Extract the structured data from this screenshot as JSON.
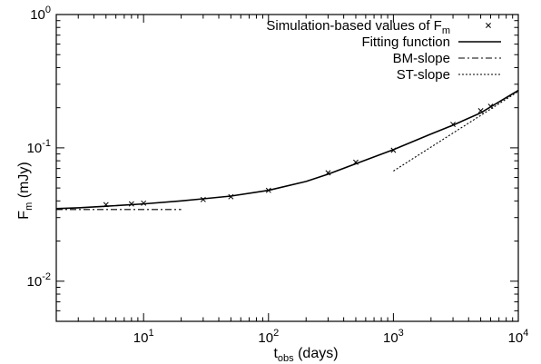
{
  "chart_data": {
    "type": "line",
    "xscale": "log",
    "yscale": "log",
    "xlim": [
      2,
      10000
    ],
    "ylim": [
      0.005,
      1
    ],
    "grid": false,
    "legend_position": "top-right",
    "xlabel": {
      "base": "t",
      "sub": "obs",
      "rest": " (days)"
    },
    "ylabel": {
      "base": "F",
      "sub": "m",
      "rest": " (mJy)"
    },
    "x_ticks": [
      {
        "value": 10,
        "base": "10",
        "exp": "1"
      },
      {
        "value": 100,
        "base": "10",
        "exp": "2"
      },
      {
        "value": 1000,
        "base": "10",
        "exp": "3"
      },
      {
        "value": 10000,
        "base": "10",
        "exp": "4"
      }
    ],
    "y_ticks": [
      {
        "value": 0.01,
        "base": "10",
        "exp": "-2"
      },
      {
        "value": 0.1,
        "base": "10",
        "exp": "-1"
      },
      {
        "value": 1,
        "base": "10",
        "exp": "0"
      }
    ],
    "legend": [
      {
        "label": "Simulation-based values of F",
        "sub": "m",
        "style": "marker-x"
      },
      {
        "label": "Fitting function",
        "style": "solid"
      },
      {
        "label": "BM-slope",
        "style": "dashdot"
      },
      {
        "label": "ST-slope",
        "style": "dotted"
      }
    ],
    "series": [
      {
        "name": "Simulation-based values of Fm",
        "kind": "scatter",
        "marker": "x",
        "x": [
          5,
          8,
          10,
          30,
          50,
          100,
          300,
          500,
          1000,
          3000,
          5000,
          6000
        ],
        "y": [
          0.0375,
          0.038,
          0.0385,
          0.041,
          0.043,
          0.048,
          0.065,
          0.078,
          0.096,
          0.15,
          0.19,
          0.205
        ]
      },
      {
        "name": "Fitting function",
        "kind": "line",
        "style": "solid",
        "x": [
          2,
          3,
          5,
          10,
          20,
          30,
          50,
          100,
          200,
          300,
          500,
          1000,
          2000,
          3000,
          5000,
          10000
        ],
        "y": [
          0.035,
          0.0355,
          0.0365,
          0.038,
          0.04,
          0.0415,
          0.0435,
          0.048,
          0.056,
          0.0635,
          0.076,
          0.097,
          0.127,
          0.148,
          0.183,
          0.27
        ]
      },
      {
        "name": "BM-slope",
        "kind": "line",
        "style": "dashdot",
        "x": [
          2,
          20
        ],
        "y": [
          0.0345,
          0.0345
        ]
      },
      {
        "name": "ST-slope",
        "kind": "line",
        "style": "dotted",
        "x": [
          1000,
          10000
        ],
        "y": [
          0.067,
          0.265
        ]
      }
    ]
  }
}
